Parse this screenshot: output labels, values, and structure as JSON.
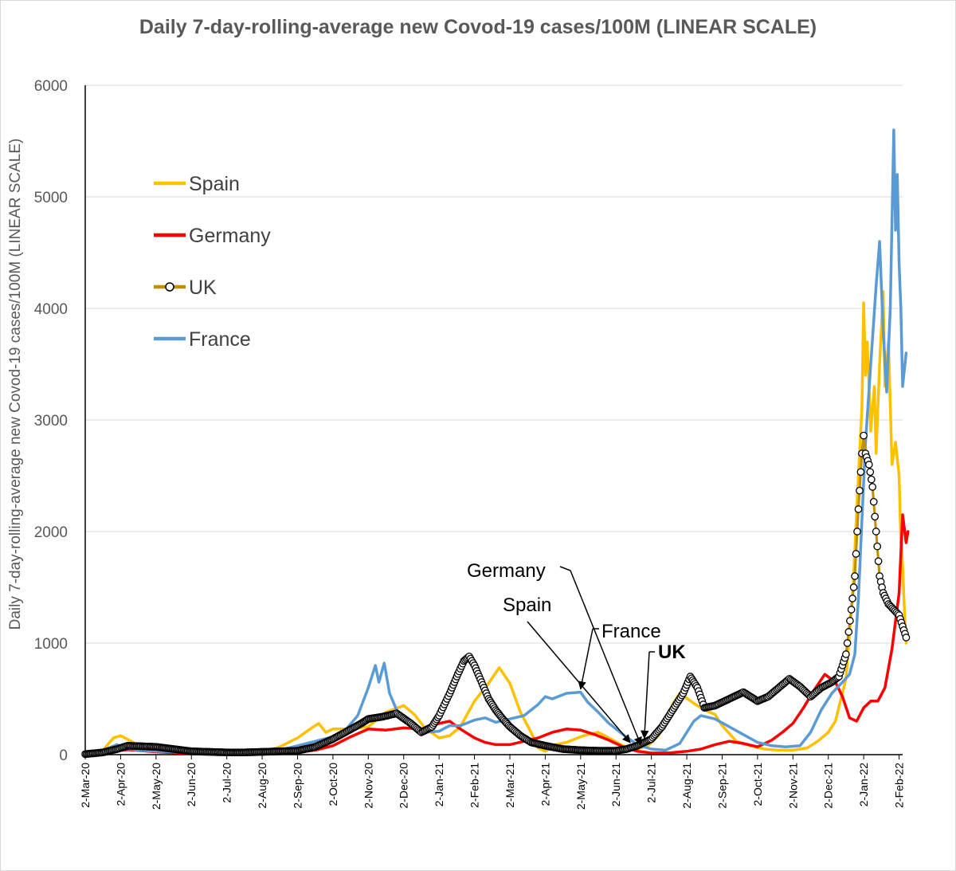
{
  "chart_data": {
    "type": "line",
    "title": "Daily 7-day-rolling-average new Covod-19 cases/100M (LINEAR SCALE)",
    "ylabel": "Daily 7-day-rolling-average new Covod-19 cases/100M (LINEAR SCALE)",
    "xlabel": "",
    "ylim": [
      0,
      6000
    ],
    "yticks": [
      0,
      1000,
      2000,
      3000,
      4000,
      5000,
      6000
    ],
    "x_unit": "months since 2-Mar-20",
    "xlim": [
      0,
      23.1
    ],
    "x_tick_labels": [
      "2-Mar-20",
      "2-Apr-20",
      "2-May-20",
      "2-Jun-20",
      "2-Jul-20",
      "2-Aug-20",
      "2-Sep-20",
      "2-Oct-20",
      "2-Nov-20",
      "2-Dec-20",
      "2-Jan-21",
      "2-Feb-21",
      "2-Mar-21",
      "2-Apr-21",
      "2-May-21",
      "2-Jun-21",
      "2-Jul-21",
      "2-Aug-21",
      "2-Sep-21",
      "2-Oct-21",
      "2-Nov-21",
      "2-Dec-21",
      "2-Jan-22",
      "2-Feb-22"
    ],
    "series": [
      {
        "name": "Spain",
        "color": "#FFC000",
        "marker": "none",
        "points": [
          [
            0,
            10
          ],
          [
            0.5,
            40
          ],
          [
            0.8,
            150
          ],
          [
            1.0,
            170
          ],
          [
            1.3,
            120
          ],
          [
            1.6,
            60
          ],
          [
            2,
            30
          ],
          [
            3,
            15
          ],
          [
            4,
            15
          ],
          [
            5,
            20
          ],
          [
            5.5,
            70
          ],
          [
            6,
            150
          ],
          [
            6.4,
            240
          ],
          [
            6.6,
            280
          ],
          [
            6.8,
            200
          ],
          [
            7,
            230
          ],
          [
            7.5,
            230
          ],
          [
            8,
            250
          ],
          [
            8.5,
            380
          ],
          [
            9,
            440
          ],
          [
            9.3,
            360
          ],
          [
            9.6,
            240
          ],
          [
            10,
            150
          ],
          [
            10.3,
            170
          ],
          [
            10.6,
            250
          ],
          [
            11,
            480
          ],
          [
            11.4,
            640
          ],
          [
            11.7,
            780
          ],
          [
            12,
            640
          ],
          [
            12.3,
            380
          ],
          [
            12.6,
            200
          ],
          [
            12.8,
            60
          ],
          [
            13,
            30
          ],
          [
            13.3,
            90
          ],
          [
            13.6,
            110
          ],
          [
            14,
            160
          ],
          [
            14.2,
            180
          ],
          [
            14.5,
            200
          ],
          [
            14.8,
            150
          ],
          [
            15.2,
            80
          ],
          [
            15.6,
            50
          ],
          [
            15.9,
            80
          ],
          [
            16.2,
            170
          ],
          [
            16.6,
            450
          ],
          [
            16.8,
            550
          ],
          [
            17.2,
            460
          ],
          [
            17.5,
            400
          ],
          [
            17.8,
            360
          ],
          [
            18,
            260
          ],
          [
            18.4,
            120
          ],
          [
            18.8,
            80
          ],
          [
            19.2,
            50
          ],
          [
            19.6,
            40
          ],
          [
            20,
            40
          ],
          [
            20.4,
            60
          ],
          [
            20.7,
            120
          ],
          [
            21,
            200
          ],
          [
            21.2,
            300
          ],
          [
            21.5,
            680
          ],
          [
            21.7,
            1500
          ],
          [
            21.85,
            2500
          ],
          [
            21.95,
            3100
          ],
          [
            22.0,
            4050
          ],
          [
            22.05,
            3400
          ],
          [
            22.1,
            3700
          ],
          [
            22.2,
            2900
          ],
          [
            22.3,
            3300
          ],
          [
            22.35,
            2700
          ],
          [
            22.45,
            3500
          ],
          [
            22.55,
            4150
          ],
          [
            22.6,
            3300
          ],
          [
            22.7,
            3700
          ],
          [
            22.8,
            2600
          ],
          [
            22.9,
            2800
          ],
          [
            23.0,
            2500
          ],
          [
            23.05,
            1900
          ],
          [
            23.1,
            1700
          ],
          [
            23.15,
            1300
          ],
          [
            23.2,
            1000
          ]
        ]
      },
      {
        "name": "Germany",
        "color": "#FF0000",
        "marker": "none",
        "points": [
          [
            0,
            5
          ],
          [
            0.8,
            30
          ],
          [
            1.2,
            45
          ],
          [
            1.6,
            35
          ],
          [
            2,
            25
          ],
          [
            3,
            8
          ],
          [
            4,
            8
          ],
          [
            5,
            10
          ],
          [
            6,
            20
          ],
          [
            6.5,
            40
          ],
          [
            7,
            80
          ],
          [
            7.5,
            160
          ],
          [
            8,
            230
          ],
          [
            8.5,
            220
          ],
          [
            9,
            240
          ],
          [
            9.5,
            230
          ],
          [
            10,
            280
          ],
          [
            10.3,
            300
          ],
          [
            10.6,
            230
          ],
          [
            11,
            150
          ],
          [
            11.3,
            110
          ],
          [
            11.6,
            90
          ],
          [
            12,
            90
          ],
          [
            12.4,
            120
          ],
          [
            12.8,
            150
          ],
          [
            13.2,
            200
          ],
          [
            13.6,
            230
          ],
          [
            14,
            220
          ],
          [
            14.4,
            180
          ],
          [
            14.8,
            130
          ],
          [
            15.2,
            70
          ],
          [
            15.6,
            30
          ],
          [
            16,
            15
          ],
          [
            16.5,
            15
          ],
          [
            17,
            30
          ],
          [
            17.4,
            50
          ],
          [
            17.8,
            90
          ],
          [
            18.2,
            120
          ],
          [
            18.6,
            100
          ],
          [
            19,
            70
          ],
          [
            19.4,
            130
          ],
          [
            19.7,
            200
          ],
          [
            20,
            280
          ],
          [
            20.3,
            420
          ],
          [
            20.6,
            580
          ],
          [
            20.9,
            720
          ],
          [
            21.2,
            650
          ],
          [
            21.4,
            520
          ],
          [
            21.6,
            330
          ],
          [
            21.8,
            300
          ],
          [
            22,
            420
          ],
          [
            22.2,
            480
          ],
          [
            22.4,
            480
          ],
          [
            22.6,
            600
          ],
          [
            22.8,
            950
          ],
          [
            23.0,
            1450
          ],
          [
            23.1,
            2150
          ],
          [
            23.2,
            1900
          ],
          [
            23.25,
            2000
          ]
        ]
      },
      {
        "name": "UK",
        "color": "#BF8F00",
        "marker": "circle",
        "points": [
          [
            0,
            5
          ],
          [
            0.5,
            20
          ],
          [
            0.9,
            50
          ],
          [
            1.2,
            80
          ],
          [
            1.6,
            75
          ],
          [
            2,
            70
          ],
          [
            2.5,
            50
          ],
          [
            3,
            30
          ],
          [
            3.5,
            25
          ],
          [
            4,
            20
          ],
          [
            4.5,
            20
          ],
          [
            5,
            25
          ],
          [
            5.5,
            30
          ],
          [
            6,
            35
          ],
          [
            6.5,
            70
          ],
          [
            7,
            140
          ],
          [
            7.4,
            210
          ],
          [
            7.8,
            280
          ],
          [
            8,
            320
          ],
          [
            8.4,
            340
          ],
          [
            8.8,
            370
          ],
          [
            9.2,
            280
          ],
          [
            9.5,
            200
          ],
          [
            9.8,
            250
          ],
          [
            10,
            350
          ],
          [
            10.3,
            550
          ],
          [
            10.5,
            700
          ],
          [
            10.7,
            840
          ],
          [
            10.85,
            880
          ],
          [
            11,
            800
          ],
          [
            11.2,
            650
          ],
          [
            11.4,
            500
          ],
          [
            11.6,
            400
          ],
          [
            11.8,
            320
          ],
          [
            12,
            250
          ],
          [
            12.3,
            170
          ],
          [
            12.6,
            110
          ],
          [
            13,
            80
          ],
          [
            13.5,
            50
          ],
          [
            14,
            40
          ],
          [
            14.5,
            35
          ],
          [
            15,
            35
          ],
          [
            15.3,
            50
          ],
          [
            15.6,
            80
          ],
          [
            16,
            140
          ],
          [
            16.3,
            250
          ],
          [
            16.6,
            400
          ],
          [
            16.9,
            550
          ],
          [
            17.1,
            700
          ],
          [
            17.3,
            600
          ],
          [
            17.5,
            420
          ],
          [
            17.8,
            440
          ],
          [
            18.2,
            500
          ],
          [
            18.6,
            560
          ],
          [
            19,
            480
          ],
          [
            19.3,
            520
          ],
          [
            19.6,
            600
          ],
          [
            19.9,
            680
          ],
          [
            20.2,
            610
          ],
          [
            20.5,
            520
          ],
          [
            20.8,
            600
          ],
          [
            21.1,
            650
          ],
          [
            21.3,
            700
          ],
          [
            21.5,
            900
          ],
          [
            21.65,
            1300
          ],
          [
            21.75,
            1600
          ],
          [
            21.85,
            2200
          ],
          [
            21.95,
            2700
          ],
          [
            22.0,
            2860
          ],
          [
            22.05,
            2700
          ],
          [
            22.15,
            2600
          ],
          [
            22.25,
            2400
          ],
          [
            22.35,
            2000
          ],
          [
            22.45,
            1600
          ],
          [
            22.55,
            1450
          ],
          [
            22.7,
            1350
          ],
          [
            22.85,
            1300
          ],
          [
            23.0,
            1250
          ],
          [
            23.1,
            1150
          ],
          [
            23.2,
            1050
          ]
        ]
      },
      {
        "name": "France",
        "color": "#5B9BD5",
        "marker": "none",
        "points": [
          [
            0,
            10
          ],
          [
            0.5,
            40
          ],
          [
            0.9,
            90
          ],
          [
            1.1,
            60
          ],
          [
            1.5,
            40
          ],
          [
            2,
            30
          ],
          [
            3,
            20
          ],
          [
            4,
            15
          ],
          [
            5,
            15
          ],
          [
            5.5,
            40
          ],
          [
            6,
            80
          ],
          [
            6.5,
            120
          ],
          [
            7,
            160
          ],
          [
            7.3,
            200
          ],
          [
            7.7,
            350
          ],
          [
            8,
            600
          ],
          [
            8.2,
            800
          ],
          [
            8.3,
            650
          ],
          [
            8.45,
            820
          ],
          [
            8.6,
            550
          ],
          [
            8.8,
            400
          ],
          [
            9,
            320
          ],
          [
            9.3,
            230
          ],
          [
            9.6,
            200
          ],
          [
            10,
            210
          ],
          [
            10.3,
            260
          ],
          [
            10.6,
            260
          ],
          [
            11,
            310
          ],
          [
            11.3,
            330
          ],
          [
            11.6,
            290
          ],
          [
            12,
            320
          ],
          [
            12.4,
            350
          ],
          [
            12.8,
            450
          ],
          [
            13,
            520
          ],
          [
            13.2,
            500
          ],
          [
            13.6,
            550
          ],
          [
            14,
            560
          ],
          [
            14.2,
            470
          ],
          [
            14.5,
            380
          ],
          [
            14.8,
            280
          ],
          [
            15.2,
            180
          ],
          [
            15.6,
            90
          ],
          [
            16,
            50
          ],
          [
            16.4,
            40
          ],
          [
            16.8,
            100
          ],
          [
            17.2,
            300
          ],
          [
            17.4,
            350
          ],
          [
            17.8,
            320
          ],
          [
            18.2,
            250
          ],
          [
            18.6,
            180
          ],
          [
            19,
            110
          ],
          [
            19.4,
            80
          ],
          [
            19.8,
            70
          ],
          [
            20.2,
            80
          ],
          [
            20.5,
            200
          ],
          [
            20.8,
            400
          ],
          [
            21.1,
            550
          ],
          [
            21.4,
            650
          ],
          [
            21.6,
            720
          ],
          [
            21.75,
            900
          ],
          [
            21.85,
            1400
          ],
          [
            21.95,
            2100
          ],
          [
            22.05,
            2800
          ],
          [
            22.2,
            3500
          ],
          [
            22.35,
            4200
          ],
          [
            22.45,
            4600
          ],
          [
            22.55,
            3800
          ],
          [
            22.65,
            3250
          ],
          [
            22.75,
            4000
          ],
          [
            22.85,
            5600
          ],
          [
            22.9,
            4700
          ],
          [
            22.95,
            5200
          ],
          [
            23.0,
            4400
          ],
          [
            23.05,
            4000
          ],
          [
            23.1,
            3300
          ],
          [
            23.2,
            3600
          ]
        ]
      }
    ],
    "legend": {
      "placement": "top-left",
      "entries": [
        "Spain",
        "Germany",
        "UK",
        "France"
      ]
    },
    "annotations": [
      {
        "text": "Germany",
        "bold": false,
        "arrow_to": [
          15.7,
          60
        ]
      },
      {
        "text": "Spain",
        "bold": false,
        "arrow_to": [
          15.4,
          80
        ]
      },
      {
        "text": "France",
        "bold": false,
        "arrow_to": [
          14.0,
          560
        ]
      },
      {
        "text": "UK",
        "bold": true,
        "arrow_to": [
          15.8,
          120
        ]
      }
    ]
  }
}
